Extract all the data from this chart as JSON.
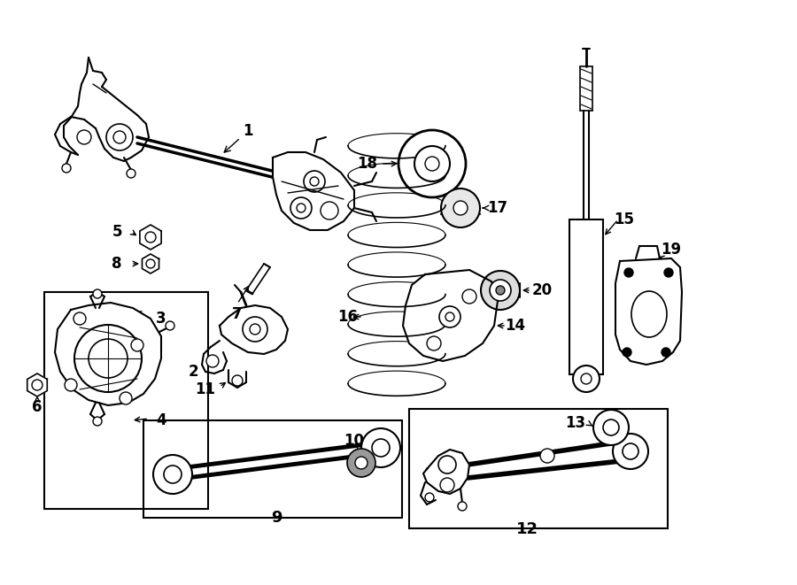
{
  "bg_color": "#ffffff",
  "lc": "#000000",
  "lw": 1.0,
  "fig_width": 9.0,
  "fig_height": 6.61,
  "dpi": 100
}
